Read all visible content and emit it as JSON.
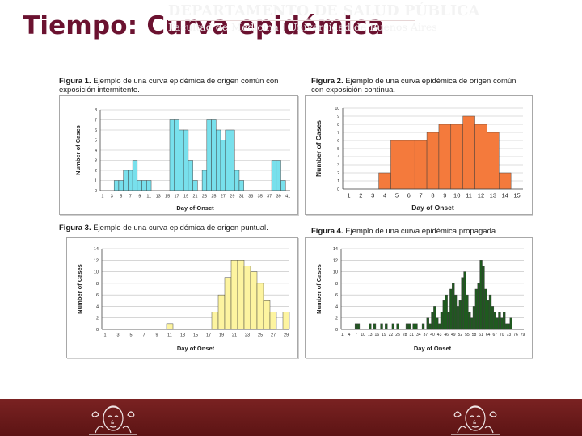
{
  "slide": {
    "title": "Tiempo: Curva epidémica"
  },
  "footer": {
    "line1": "DEPARTAMENTO DE SALUD PÚBLICA",
    "line2": "Facultad de Medicina | Universidad de Buenos Aires"
  },
  "chart_data": [
    {
      "type": "bar",
      "caption_label": "Figura 1.",
      "caption_text": "Ejemplo de una curva epidémica de origen común con exposición intermitente.",
      "xlabel": "Day of Onset",
      "ylabel": "Number of Cases",
      "x_tick_labels": [
        "1",
        "3",
        "5",
        "7",
        "9",
        "11",
        "13",
        "15",
        "17",
        "19",
        "21",
        "23",
        "25",
        "27",
        "29",
        "31",
        "33",
        "35",
        "37",
        "39",
        "41"
      ],
      "y_ticks": [
        0,
        1,
        2,
        3,
        4,
        5,
        6,
        7,
        8
      ],
      "ylim": [
        0,
        8
      ],
      "x": [
        1,
        2,
        3,
        4,
        5,
        6,
        7,
        8,
        9,
        10,
        11,
        12,
        13,
        14,
        15,
        16,
        17,
        18,
        19,
        20,
        21,
        22,
        23,
        24,
        25,
        26,
        27,
        28,
        29,
        30,
        31,
        32,
        33,
        34,
        35,
        36,
        37,
        38,
        39,
        40,
        41
      ],
      "values": [
        0,
        0,
        0,
        1,
        1,
        2,
        2,
        3,
        1,
        1,
        1,
        0,
        0,
        0,
        0,
        7,
        7,
        6,
        6,
        3,
        1,
        0,
        2,
        7,
        7,
        6,
        5,
        6,
        6,
        2,
        1,
        0,
        0,
        0,
        0,
        0,
        0,
        3,
        3,
        1,
        0
      ],
      "color": "#78e0ec",
      "grid": true
    },
    {
      "type": "bar",
      "caption_label": "Figura 2.",
      "caption_text": "Ejemplo de una curva epidémica de origen común con exposición continua.",
      "xlabel": "Day of Onset",
      "ylabel": "Number of Cases",
      "x_tick_labels": [
        "1",
        "2",
        "3",
        "4",
        "5",
        "6",
        "7",
        "8",
        "9",
        "10",
        "11",
        "12",
        "13",
        "14",
        "15"
      ],
      "y_ticks": [
        0,
        1,
        2,
        3,
        4,
        5,
        6,
        7,
        8,
        9,
        10
      ],
      "ylim": [
        0,
        10
      ],
      "x": [
        1,
        2,
        3,
        4,
        5,
        6,
        7,
        8,
        9,
        10,
        11,
        12,
        13,
        14,
        15
      ],
      "values": [
        0,
        0,
        0,
        2,
        6,
        6,
        6,
        7,
        8,
        8,
        9,
        8,
        7,
        2,
        0
      ],
      "color": "#f47a3c",
      "grid": true
    },
    {
      "type": "bar",
      "caption_label": "Figura 3.",
      "caption_text": "Ejemplo de una curva epidémica de origen puntual.",
      "xlabel": "Day of Onset",
      "ylabel": "Number of Cases",
      "x_tick_labels": [
        "1",
        "3",
        "5",
        "7",
        "9",
        "11",
        "13",
        "15",
        "17",
        "19",
        "21",
        "23",
        "25",
        "27",
        "29"
      ],
      "y_ticks": [
        0,
        2,
        4,
        6,
        8,
        10,
        12,
        14
      ],
      "ylim": [
        0,
        14
      ],
      "x": [
        1,
        2,
        3,
        4,
        5,
        6,
        7,
        8,
        9,
        10,
        11,
        12,
        13,
        14,
        15,
        16,
        17,
        18,
        19,
        20,
        21,
        22,
        23,
        24,
        25,
        26,
        27,
        28,
        29
      ],
      "values": [
        0,
        0,
        0,
        0,
        0,
        0,
        0,
        0,
        0,
        0,
        1,
        0,
        0,
        0,
        0,
        0,
        0,
        3,
        6,
        9,
        12,
        12,
        11,
        10,
        8,
        5,
        3,
        0,
        3
      ],
      "color": "#fdf4a0",
      "grid": true
    },
    {
      "type": "bar",
      "caption_label": "Figura 4.",
      "caption_text": "Ejemplo de una curva epidémica propagada.",
      "xlabel": "Day of Onset",
      "ylabel": "Number of Cases",
      "x_tick_labels": [
        "1",
        "4",
        "7",
        "10",
        "13",
        "16",
        "19",
        "22",
        "25",
        "28",
        "31",
        "34",
        "37",
        "40",
        "43",
        "46",
        "49",
        "52",
        "55",
        "58",
        "61",
        "64",
        "67",
        "70",
        "73",
        "76",
        "79"
      ],
      "y_ticks": [
        0,
        2,
        4,
        6,
        8,
        10,
        12,
        14
      ],
      "ylim": [
        0,
        14
      ],
      "x": [
        1,
        2,
        3,
        4,
        5,
        6,
        7,
        8,
        9,
        10,
        11,
        12,
        13,
        14,
        15,
        16,
        17,
        18,
        19,
        20,
        21,
        22,
        23,
        24,
        25,
        26,
        27,
        28,
        29,
        30,
        31,
        32,
        33,
        34,
        35,
        36,
        37,
        38,
        39,
        40,
        41,
        42,
        43,
        44,
        45,
        46,
        47,
        48,
        49,
        50,
        51,
        52,
        53,
        54,
        55,
        56,
        57,
        58,
        59,
        60,
        61,
        62,
        63,
        64,
        65,
        66,
        67,
        68,
        69,
        70,
        71,
        72,
        73,
        74,
        75,
        76,
        77,
        78,
        79
      ],
      "values": [
        0,
        0,
        0,
        0,
        0,
        0,
        1,
        1,
        0,
        0,
        0,
        0,
        1,
        0,
        1,
        0,
        0,
        1,
        0,
        1,
        0,
        0,
        1,
        0,
        1,
        0,
        0,
        0,
        1,
        1,
        0,
        1,
        1,
        0,
        0,
        1,
        0,
        2,
        1,
        3,
        4,
        2,
        1,
        3,
        5,
        6,
        3,
        7,
        8,
        6,
        4,
        5,
        9,
        10,
        6,
        3,
        2,
        4,
        7,
        8,
        12,
        11,
        7,
        5,
        6,
        4,
        3,
        2,
        3,
        2,
        3,
        1,
        1,
        2,
        0,
        0,
        0,
        0,
        0
      ],
      "color": "#1f5a1f",
      "grid": true
    }
  ]
}
